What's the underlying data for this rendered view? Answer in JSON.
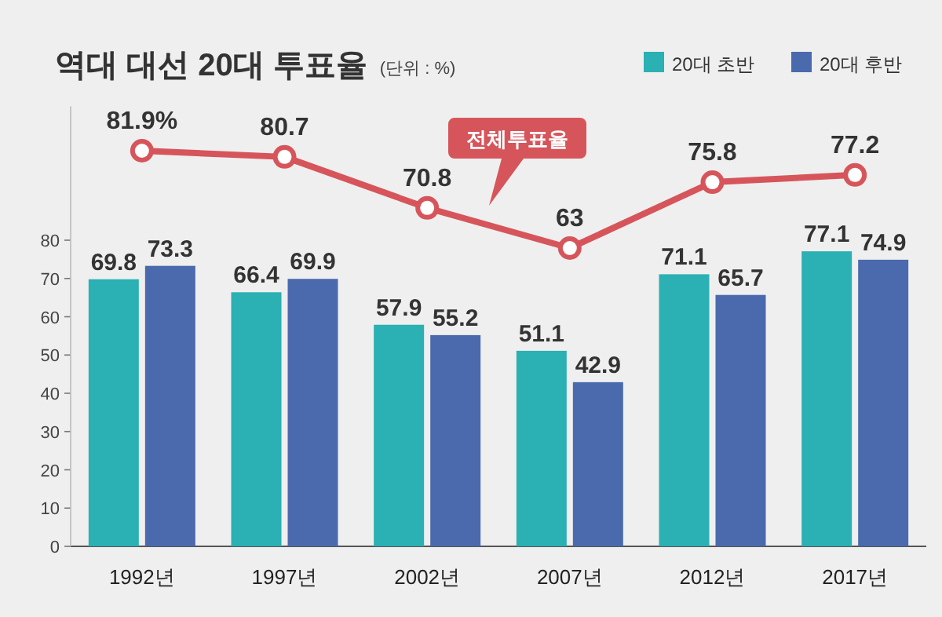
{
  "chart_data": {
    "type": "bar",
    "title": "역대 대선 20대 투표율",
    "subtitle": "(단위 : %)",
    "categories": [
      "1992년",
      "1997년",
      "2002년",
      "2007년",
      "2012년",
      "2017년"
    ],
    "series": [
      {
        "name": "20대 초반",
        "color": "#2bb0b3",
        "values": [
          69.8,
          66.4,
          57.9,
          51.1,
          71.1,
          77.1
        ]
      },
      {
        "name": "20대 후반",
        "color": "#4b6aae",
        "values": [
          73.3,
          69.9,
          55.2,
          42.9,
          65.7,
          74.9
        ]
      },
      {
        "type": "line",
        "axis": "y2",
        "color": "#d6555b",
        "marker": "circle",
        "values": [
          81.9,
          80.7,
          70.8,
          63,
          75.8,
          77.2
        ],
        "value_labels": [
          "81.9%",
          "80.7",
          "70.8",
          "63",
          "75.8",
          "77.2"
        ]
      }
    ],
    "annotations": [
      "전체투표율"
    ],
    "ylim": [
      0,
      115
    ],
    "yticks": [
      0,
      10,
      20,
      30,
      40,
      50,
      60,
      70,
      80
    ],
    "tick_labels": "xy",
    "data_labels": true,
    "legend": "top right",
    "grid": false
  }
}
